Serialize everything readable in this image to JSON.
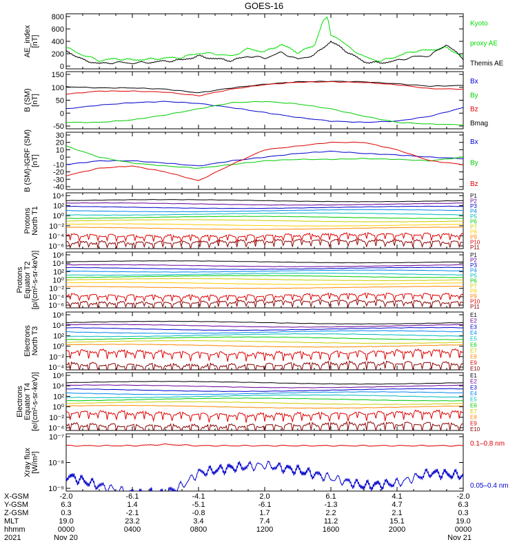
{
  "title": "GOES-16",
  "panels": [
    {
      "ylabel_lines": [
        "AE_index",
        "[nT]"
      ],
      "yticks": [
        "800",
        "600",
        "400",
        "200",
        "0"
      ],
      "legend": [
        {
          "text": "Kyoto",
          "color": "#00dd00"
        },
        {
          "text": "proxy AE",
          "color": "#00dd00"
        },
        {
          "text": "Themis AE",
          "color": "#000000"
        }
      ]
    },
    {
      "ylabel_lines": [
        "B (SM)",
        "[nT]"
      ],
      "yticks": [
        "150",
        "100",
        "50",
        "0",
        "-50"
      ],
      "legend": [
        {
          "text": "Bx",
          "color": "#0000cc"
        },
        {
          "text": "By",
          "color": "#00cc00"
        },
        {
          "text": "Bz",
          "color": "#dd0000"
        },
        {
          "text": "Bmag",
          "color": "#000000"
        }
      ]
    },
    {
      "ylabel_lines": [
        "B (SM)-IGRF (SM)",
        "[nT]"
      ],
      "yticks": [
        "30",
        "20",
        "10",
        "0",
        "-10",
        "-20",
        "-30",
        "-40"
      ],
      "legend": [
        {
          "text": "Bx",
          "color": "#0000cc"
        },
        {
          "text": "By",
          "color": "#00cc00"
        },
        {
          "text": "Bz",
          "color": "#dd0000"
        }
      ]
    },
    {
      "ylabel_lines": [
        "Protons",
        "North T1"
      ],
      "yticks": [
        "10⁴",
        "10²",
        "10⁰",
        "10⁻²",
        "10⁻⁴",
        "10⁻⁶"
      ],
      "legend": [
        {
          "text": "P1",
          "color": "#000000"
        },
        {
          "text": "P2",
          "color": "#660099"
        },
        {
          "text": "P3",
          "color": "#0000cc"
        },
        {
          "text": "P4",
          "color": "#0088ee"
        },
        {
          "text": "P5",
          "color": "#00bbbb"
        },
        {
          "text": "P6",
          "color": "#00cc00"
        },
        {
          "text": "P7",
          "color": "#cccc00"
        },
        {
          "text": "P8",
          "color": "#ffcc00"
        },
        {
          "text": "P9",
          "color": "#ff8800"
        },
        {
          "text": "P10",
          "color": "#dd0000"
        },
        {
          "text": "P11",
          "color": "#880000"
        }
      ]
    },
    {
      "ylabel_lines": [
        "Protons",
        "Equator T2",
        "[p/(cm²-s-sr-keV)]"
      ],
      "yticks": [
        "10⁶",
        "10⁴",
        "10²",
        "10⁰",
        "10⁻²",
        "10⁻⁴",
        "10⁻⁶"
      ],
      "legend": [
        {
          "text": "P1",
          "color": "#000000"
        },
        {
          "text": "P2",
          "color": "#660099"
        },
        {
          "text": "P3",
          "color": "#0000cc"
        },
        {
          "text": "P4",
          "color": "#0088ee"
        },
        {
          "text": "P5",
          "color": "#00bbbb"
        },
        {
          "text": "P6",
          "color": "#00cc00"
        },
        {
          "text": "P7",
          "color": "#cccc00"
        },
        {
          "text": "P8",
          "color": "#ffcc00"
        },
        {
          "text": "P9",
          "color": "#ff8800"
        },
        {
          "text": "P10",
          "color": "#dd0000"
        },
        {
          "text": "P11",
          "color": "#880000"
        }
      ]
    },
    {
      "ylabel_lines": [
        "Electrons",
        "North T3"
      ],
      "yticks": [
        "10⁶",
        "10⁴",
        "10²",
        "10⁰",
        "10⁻²",
        "10⁻⁴"
      ],
      "legend": [
        {
          "text": "E1",
          "color": "#000000"
        },
        {
          "text": "E2",
          "color": "#660099"
        },
        {
          "text": "E3",
          "color": "#0000cc"
        },
        {
          "text": "E4",
          "color": "#0088ee"
        },
        {
          "text": "E5",
          "color": "#00bbbb"
        },
        {
          "text": "E6",
          "color": "#00cc00"
        },
        {
          "text": "E7",
          "color": "#cccc00"
        },
        {
          "text": "E8",
          "color": "#ff8800"
        },
        {
          "text": "E9",
          "color": "#dd0000"
        },
        {
          "text": "E10",
          "color": "#880000"
        }
      ]
    },
    {
      "ylabel_lines": [
        "Electrons",
        "Equator T4",
        "[e/(cm²-s-sr-keV)]"
      ],
      "yticks": [
        "10⁶",
        "10⁴",
        "10²",
        "10⁰",
        "10⁻²",
        "10⁻⁴"
      ],
      "legend": [
        {
          "text": "E1",
          "color": "#000000"
        },
        {
          "text": "E2",
          "color": "#660099"
        },
        {
          "text": "E3",
          "color": "#0000cc"
        },
        {
          "text": "E4",
          "color": "#0088ee"
        },
        {
          "text": "E5",
          "color": "#00bbbb"
        },
        {
          "text": "E6",
          "color": "#00cc00"
        },
        {
          "text": "E7",
          "color": "#cccc00"
        },
        {
          "text": "E8",
          "color": "#ff8800"
        },
        {
          "text": "E9",
          "color": "#dd0000"
        },
        {
          "text": "E10",
          "color": "#880000"
        }
      ]
    },
    {
      "ylabel_lines": [
        "Xray flux",
        "[W/m²]"
      ],
      "yticks": [
        "10⁻⁷",
        "10⁻⁸",
        "10⁻⁹"
      ],
      "legend": [
        {
          "text": "0.1–0.8 nm",
          "color": "#dd0000"
        },
        {
          "text": "0.05–0.4 nm",
          "color": "#0000cc"
        }
      ]
    }
  ],
  "footer": {
    "row_labels": [
      "X-GSM",
      "Y-GSM",
      "Z-GSM",
      "MLT",
      "hhmm",
      "2021"
    ],
    "columns": [
      [
        "-2.0",
        "6.3",
        "0.3",
        "19.0",
        "0000",
        "Nov 20"
      ],
      [
        "-6.1",
        "1.4",
        "-2.1",
        "23.2",
        "0400",
        ""
      ],
      [
        "-4.1",
        "-5.1",
        "-0.8",
        "3.4",
        "0800",
        ""
      ],
      [
        "2.0",
        "-6.1",
        "1.7",
        "7.4",
        "1200",
        ""
      ],
      [
        "6.1",
        "-1.3",
        "2.2",
        "11.2",
        "1600",
        ""
      ],
      [
        "4.1",
        "4.7",
        "2.1",
        "15.1",
        "2000",
        ""
      ],
      [
        "-2.0",
        "6.3",
        "0.3",
        "19.0",
        "0000",
        "Nov 21"
      ]
    ]
  },
  "chart_data": {
    "type": "line",
    "title": "GOES-16",
    "x_hours": [
      0,
      4,
      8,
      12,
      16,
      20,
      24
    ],
    "x_tick_labels": [
      "0000",
      "0400",
      "0800",
      "1200",
      "1600",
      "2000",
      "0000"
    ],
    "panels": [
      {
        "ylabel": "AE_index [nT]",
        "ylim": [
          0,
          800
        ],
        "series": [
          {
            "name": "Kyoto proxy AE",
            "color": "#00dd00",
            "x": [
              0,
              1,
              2,
              3,
              4,
              5,
              6,
              7,
              8,
              9,
              10,
              11,
              12,
              13,
              14,
              15,
              15.5,
              15.8,
              16,
              16.3,
              17,
              18,
              19,
              20,
              21,
              22,
              23,
              24
            ],
            "values": [
              300,
              180,
              90,
              120,
              100,
              110,
              130,
              140,
              210,
              200,
              160,
              280,
              230,
              350,
              220,
              330,
              720,
              780,
              500,
              480,
              320,
              150,
              80,
              160,
              240,
              260,
              300,
              150
            ]
          },
          {
            "name": "Themis AE",
            "color": "#000000",
            "x": [
              0,
              1,
              2,
              3,
              4,
              5,
              6,
              7,
              8,
              9,
              10,
              11,
              12,
              13,
              14,
              15,
              16,
              17,
              18,
              19,
              20,
              21,
              22,
              23,
              24
            ],
            "values": [
              250,
              100,
              40,
              60,
              50,
              60,
              80,
              100,
              160,
              120,
              90,
              160,
              130,
              220,
              110,
              180,
              400,
              230,
              70,
              50,
              90,
              150,
              170,
              350,
              120
            ]
          }
        ]
      },
      {
        "ylabel": "B (SM) [nT]",
        "ylim": [
          -60,
          150
        ],
        "series": [
          {
            "name": "Bmag",
            "color": "#000000",
            "x": [
              0,
              2,
              4,
              6,
              8,
              10,
              12,
              14,
              16,
              18,
              20,
              22,
              24
            ],
            "values": [
              100,
              95,
              95,
              90,
              75,
              95,
              110,
              120,
              122,
              120,
              112,
              102,
              105
            ]
          },
          {
            "name": "Bz",
            "color": "#dd0000",
            "x": [
              0,
              2,
              4,
              6,
              8,
              10,
              12,
              14,
              16,
              18,
              20,
              22,
              24
            ],
            "values": [
              70,
              82,
              82,
              78,
              63,
              90,
              108,
              118,
              120,
              117,
              108,
              92,
              90
            ]
          },
          {
            "name": "Bx",
            "color": "#0000cc",
            "x": [
              0,
              2,
              4,
              6,
              8,
              10,
              12,
              14,
              16,
              18,
              20,
              22,
              24
            ],
            "values": [
              10,
              25,
              35,
              40,
              32,
              15,
              -5,
              -25,
              -40,
              -45,
              -40,
              -20,
              15
            ]
          },
          {
            "name": "By",
            "color": "#00cc00",
            "x": [
              0,
              2,
              4,
              6,
              8,
              10,
              12,
              14,
              16,
              18,
              20,
              22,
              24
            ],
            "values": [
              -45,
              -45,
              -35,
              -15,
              10,
              35,
              40,
              30,
              10,
              -20,
              -45,
              -52,
              -55
            ]
          }
        ]
      },
      {
        "ylabel": "B (SM)-IGRF (SM) [nT]",
        "ylim": [
          -40,
          30
        ],
        "series": [
          {
            "name": "Bx",
            "color": "#0000cc",
            "x": [
              0,
              2,
              4,
              6,
              8,
              10,
              12,
              14,
              16,
              18,
              20,
              22,
              24
            ],
            "values": [
              -10,
              -5,
              -5,
              -8,
              -12,
              -5,
              0,
              5,
              8,
              5,
              3,
              0,
              -2
            ]
          },
          {
            "name": "By",
            "color": "#00cc00",
            "x": [
              0,
              2,
              4,
              6,
              8,
              10,
              12,
              14,
              16,
              18,
              20,
              22,
              24
            ],
            "values": [
              15,
              0,
              -8,
              -12,
              -15,
              -10,
              -5,
              -3,
              -3,
              -2,
              -3,
              -5,
              0
            ]
          },
          {
            "name": "Bz",
            "color": "#dd0000",
            "x": [
              0,
              2,
              4,
              6,
              8,
              10,
              12,
              14,
              16,
              18,
              20,
              22,
              24
            ],
            "values": [
              -25,
              -15,
              -12,
              -20,
              -32,
              -10,
              10,
              15,
              20,
              20,
              10,
              -5,
              -10
            ]
          }
        ]
      },
      {
        "ylabel": "Protons North T1",
        "log_exponent_range": [
          -7,
          5
        ],
        "series_levels_log10": [
          3.8,
          3.0,
          2.2,
          1.4,
          0.6,
          -0.2,
          -1.0,
          -2.0,
          -2.8,
          -4.5,
          -6.0
        ]
      },
      {
        "ylabel": "Protons Equator T2 [p/(cm²-s-sr-keV)]",
        "log_exponent_range": [
          -7,
          6
        ],
        "series_levels_log10": [
          4.2,
          3.2,
          2.5,
          1.8,
          1.0,
          0.4,
          -0.4,
          -1.4,
          -2.4,
          -4.5,
          -6.2
        ]
      },
      {
        "ylabel": "Electrons North T3",
        "log_exponent_range": [
          -4,
          6
        ],
        "series_levels_log10": [
          4.5,
          3.9,
          3.3,
          2.7,
          2.1,
          1.5,
          0.8,
          0.1,
          -1.2,
          -3.5
        ]
      },
      {
        "ylabel": "Electrons Equator T4 [e/(cm²-s-sr-keV)]",
        "log_exponent_range": [
          -4,
          6
        ],
        "series_levels_log10": [
          4.6,
          3.9,
          3.2,
          2.6,
          2.0,
          1.4,
          0.7,
          0.0,
          -1.3,
          -3.5
        ]
      },
      {
        "ylabel": "Xray flux [W/m²]",
        "log_exponent_range": [
          -9,
          -7
        ],
        "series": [
          {
            "name": "0.1–0.8 nm",
            "color": "#dd0000",
            "x": [
              0,
              4,
              6,
              8,
              12,
              16,
              20,
              24
            ],
            "log10_values": [
              -7.35,
              -7.35,
              -7.3,
              -7.35,
              -7.35,
              -7.35,
              -7.35,
              -7.35
            ]
          },
          {
            "name": "0.05–0.4 nm",
            "color": "#0000cc",
            "x": [
              0,
              2,
              4,
              6,
              7,
              8,
              10,
              12,
              14,
              16,
              18,
              20,
              22,
              24
            ],
            "log10_values": [
              -8.5,
              -8.9,
              -9.2,
              -9.2,
              -8.9,
              -8.4,
              -8.2,
              -8.1,
              -8.3,
              -8.6,
              -8.9,
              -8.8,
              -8.4,
              -8.5
            ]
          }
        ]
      }
    ]
  }
}
